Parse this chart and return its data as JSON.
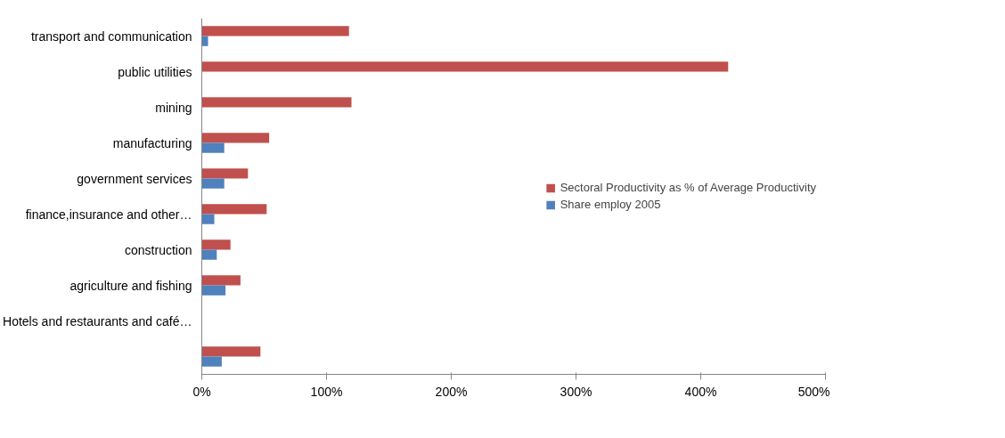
{
  "chart_data": {
    "type": "bar",
    "orientation": "horizontal",
    "categories": [
      "transport and communication",
      "public utilities",
      "mining",
      "manufacturing",
      "government services",
      "finance,insurance and other…",
      "construction",
      "agriculture and fishing",
      "Hotels and restaurants and café…",
      null
    ],
    "series": [
      {
        "name": "Sectoral Productivity as % of Average Productivity",
        "color": "#c0504d",
        "values": [
          118,
          422,
          120,
          54,
          37,
          52,
          23,
          31,
          null,
          47
        ]
      },
      {
        "name": "Share employ 2005",
        "color": "#4f81bd",
        "values": [
          5,
          null,
          null,
          18,
          18,
          10,
          12,
          19,
          null,
          16
        ]
      }
    ],
    "xlim": [
      0,
      500
    ],
    "xticks": [
      {
        "value": 0,
        "label": "0%"
      },
      {
        "value": 100,
        "label": "100%"
      },
      {
        "value": 200,
        "label": "200%"
      },
      {
        "value": 300,
        "label": "300%"
      },
      {
        "value": 400,
        "label": "400%"
      },
      {
        "value": 500,
        "label": "500%"
      }
    ],
    "grid": false,
    "legend": "right"
  }
}
